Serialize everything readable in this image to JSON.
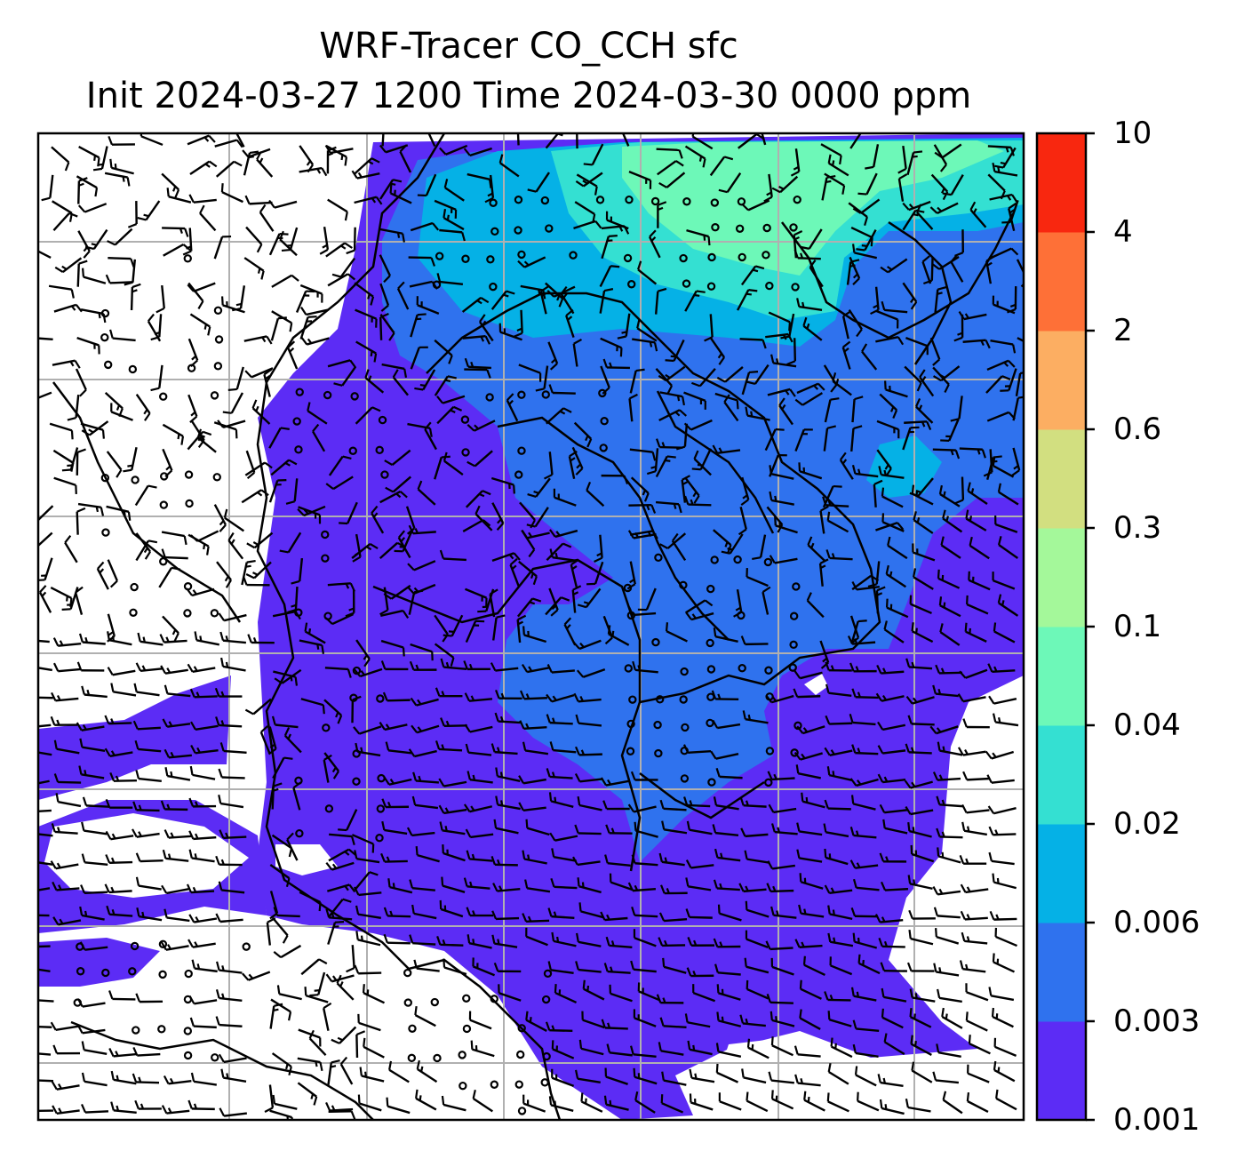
{
  "title": {
    "line1": "WRF-Tracer CO_CCH sfc",
    "line2": "Init 2024-03-27 1200 Time 2024-03-30 0000 ppm"
  },
  "colorbar": {
    "levels": [
      "0.001",
      "0.003",
      "0.006",
      "0.02",
      "0.04",
      "0.1",
      "0.3",
      "0.6",
      "2",
      "4",
      "10"
    ],
    "colors": [
      "#5c2cf5",
      "#2f72ee",
      "#05b1e6",
      "#34e0d2",
      "#6df8b8",
      "#a4f89a",
      "#d2df80",
      "#fcae62",
      "#fe7037",
      "#f8270f"
    ]
  },
  "map_colors": {
    "background": "#ffffff",
    "grid": "#b0b0b0",
    "barb": "#000000",
    "coast": "#000000"
  }
}
